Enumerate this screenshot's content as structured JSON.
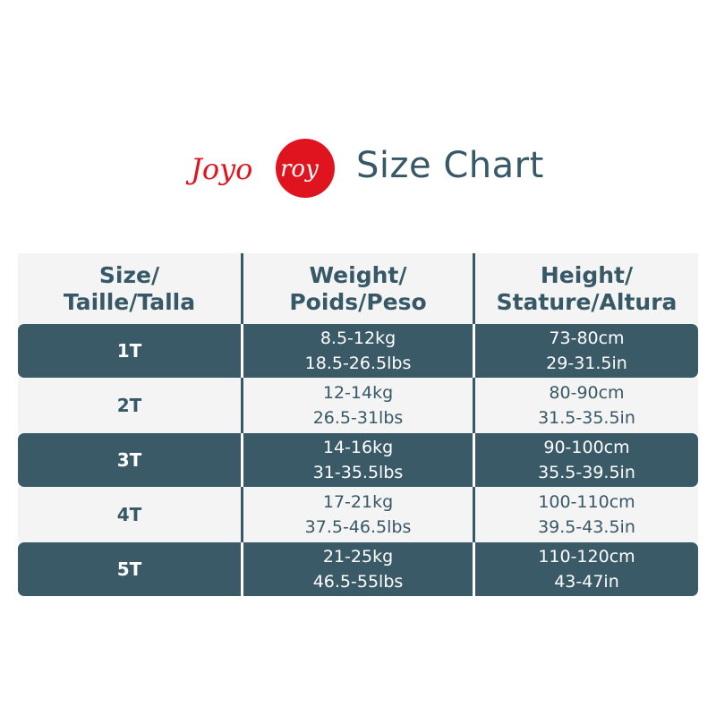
{
  "brand": {
    "logo_text": "Joyo roy",
    "logo_color": "#e0141e"
  },
  "title": "Size Chart",
  "colors": {
    "dark_row": "#3a5a68",
    "light_row": "#f4f4f4",
    "text": "#375866"
  },
  "header": {
    "size": [
      "Size/",
      "Taille/Talla"
    ],
    "weight": [
      "Weight/",
      "Poids/Peso"
    ],
    "height": [
      "Height/",
      "Stature/Altura"
    ]
  },
  "rows": [
    {
      "size": "1T",
      "weight": [
        "8.5-12kg",
        "18.5-26.5lbs"
      ],
      "height": [
        "73-80cm",
        "29-31.5in"
      ]
    },
    {
      "size": "2T",
      "weight": [
        "12-14kg",
        "26.5-31lbs"
      ],
      "height": [
        "80-90cm",
        "31.5-35.5in"
      ]
    },
    {
      "size": "3T",
      "weight": [
        "14-16kg",
        "31-35.5lbs"
      ],
      "height": [
        "90-100cm",
        "35.5-39.5in"
      ]
    },
    {
      "size": "4T",
      "weight": [
        "17-21kg",
        "37.5-46.5lbs"
      ],
      "height": [
        "100-110cm",
        "39.5-43.5in"
      ]
    },
    {
      "size": "5T",
      "weight": [
        "21-25kg",
        "46.5-55lbs"
      ],
      "height": [
        "110-120cm",
        "43-47in"
      ]
    }
  ]
}
